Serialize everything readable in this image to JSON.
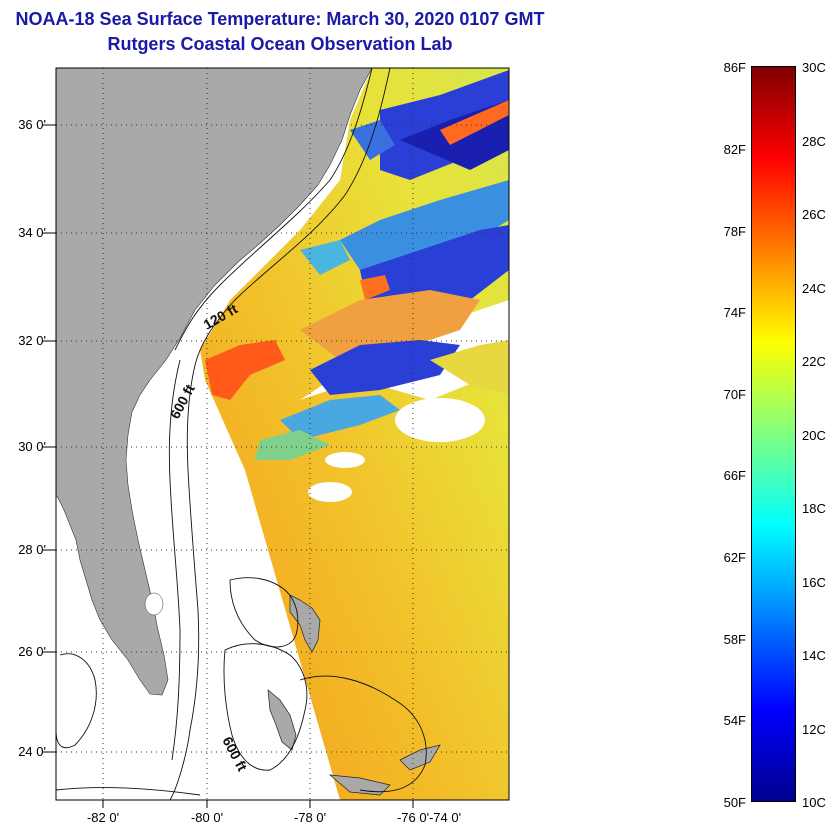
{
  "header": {
    "title_line1": "NOAA-18 Sea Surface Temperature:  March 30, 2020 0107 GMT",
    "title_line2": "Rutgers Coastal Ocean Observation Lab"
  },
  "map": {
    "lat_labels": [
      "36 0'",
      "34 0'",
      "32 0'",
      "30 0'",
      "28 0'",
      "26 0'",
      "24 0'"
    ],
    "lon_labels": [
      "-82 0'",
      "-80 0'",
      "-78 0'",
      "-76 0'",
      "-74 0'"
    ],
    "contour_labels": [
      "120 ft",
      "600 ft",
      "600 ft"
    ],
    "colors": {
      "land": "#a9a9a9",
      "ocean_missing": "#ffffff",
      "warm": "#f4a21a",
      "hot": "#ff4a10",
      "mid": "#e6e63c",
      "cool": "#3fb0e8",
      "cold": "#1a2fd0"
    }
  },
  "colorbar": {
    "fahrenheit_labels": [
      "86F",
      "82F",
      "78F",
      "74F",
      "70F",
      "66F",
      "62F",
      "58F",
      "54F",
      "50F"
    ],
    "celsius_labels": [
      "30C",
      "28C",
      "26C",
      "24C",
      "22C",
      "20C",
      "18C",
      "16C",
      "14C",
      "12C",
      "10C"
    ],
    "min_f": 50,
    "max_f": 86,
    "min_c": 10,
    "max_c": 30,
    "scale": [
      "#00008f",
      "#0000ff",
      "#007fff",
      "#00ffff",
      "#7fff7f",
      "#ffff00",
      "#ff7f00",
      "#ff0000",
      "#7f0000"
    ]
  }
}
